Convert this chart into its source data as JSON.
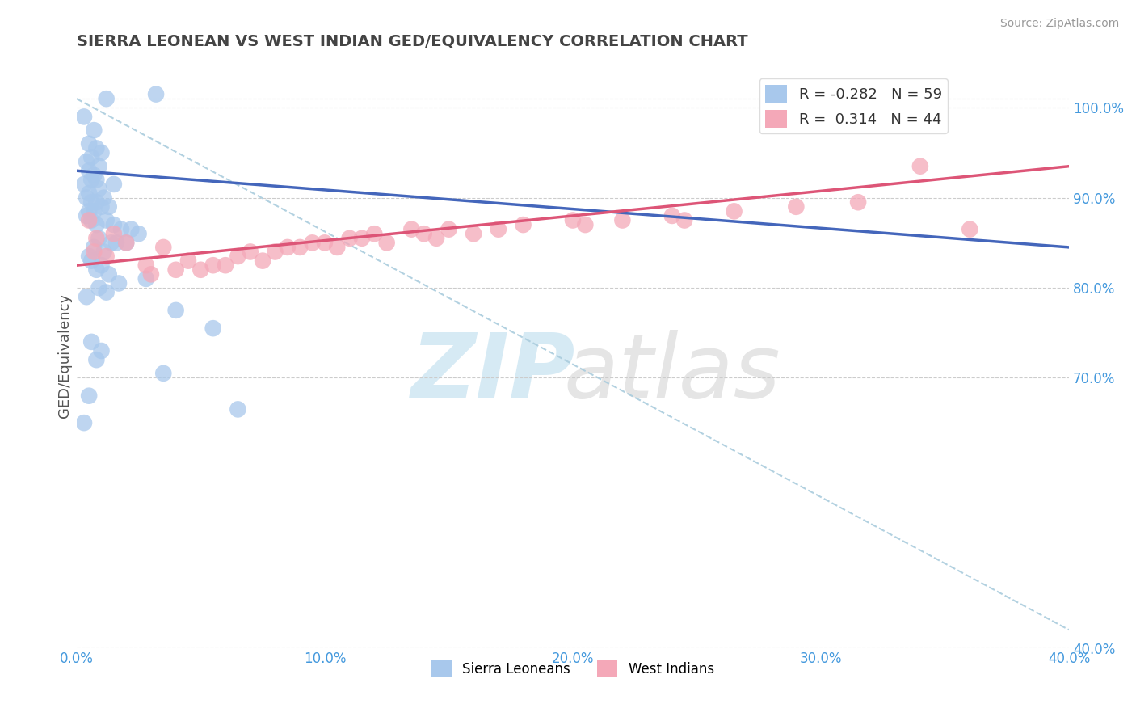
{
  "title": "SIERRA LEONEAN VS WEST INDIAN GED/EQUIVALENCY CORRELATION CHART",
  "source": "Source: ZipAtlas.com",
  "ylabel": "GED/Equivalency",
  "xlim": [
    0.0,
    40.0
  ],
  "ylim": [
    40.0,
    105.0
  ],
  "yticks_right": [
    40.0,
    70.0,
    80.0,
    90.0,
    100.0
  ],
  "xticks": [
    0.0,
    10.0,
    20.0,
    30.0,
    40.0
  ],
  "blue_R": -0.282,
  "blue_N": 59,
  "pink_R": 0.314,
  "pink_N": 44,
  "blue_color": "#A8C8EC",
  "pink_color": "#F4A8B8",
  "blue_line_color": "#4466BB",
  "pink_line_color": "#DD5577",
  "dashed_line_color": "#AACCDD",
  "grid_color": "#CCCCCC",
  "title_color": "#444444",
  "axis_color": "#4499DD",
  "legend_blue_label": "Sierra Leoneans",
  "legend_pink_label": "West Indians",
  "blue_line_x0": 0.0,
  "blue_line_y0": 93.0,
  "blue_line_x1": 40.0,
  "blue_line_y1": 84.5,
  "pink_line_x0": 0.0,
  "pink_line_y0": 82.5,
  "pink_line_x1": 40.0,
  "pink_line_y1": 93.5,
  "dash_line_x0": 0.0,
  "dash_line_y0": 101.0,
  "dash_line_x1": 40.0,
  "dash_line_y1": 42.0,
  "blue_scatter_x": [
    1.2,
    3.2,
    0.3,
    0.7,
    0.5,
    0.8,
    1.0,
    0.6,
    0.4,
    0.9,
    0.5,
    0.7,
    0.8,
    0.6,
    1.5,
    0.3,
    0.9,
    0.5,
    0.4,
    1.1,
    0.6,
    0.8,
    1.3,
    1.0,
    0.7,
    0.5,
    0.4,
    1.2,
    0.6,
    0.8,
    1.5,
    1.8,
    2.2,
    2.5,
    0.9,
    1.4,
    1.6,
    2.0,
    0.7,
    1.1,
    0.5,
    0.6,
    1.0,
    0.8,
    1.3,
    2.8,
    1.7,
    0.9,
    1.2,
    0.4,
    4.0,
    5.5,
    0.6,
    1.0,
    0.8,
    3.5,
    0.5,
    6.5,
    0.3
  ],
  "blue_scatter_y": [
    101.0,
    101.5,
    99.0,
    97.5,
    96.0,
    95.5,
    95.0,
    94.5,
    94.0,
    93.5,
    93.0,
    92.5,
    92.0,
    92.0,
    91.5,
    91.5,
    91.0,
    90.5,
    90.0,
    90.0,
    89.5,
    89.5,
    89.0,
    89.0,
    88.5,
    88.5,
    88.0,
    87.5,
    87.5,
    87.0,
    87.0,
    86.5,
    86.5,
    86.0,
    85.5,
    85.0,
    85.0,
    85.0,
    84.5,
    84.0,
    83.5,
    83.0,
    82.5,
    82.0,
    81.5,
    81.0,
    80.5,
    80.0,
    79.5,
    79.0,
    77.5,
    75.5,
    74.0,
    73.0,
    72.0,
    70.5,
    68.0,
    66.5,
    65.0
  ],
  "pink_scatter_x": [
    0.5,
    1.5,
    0.8,
    2.0,
    3.5,
    0.7,
    1.2,
    4.5,
    2.8,
    5.0,
    3.0,
    6.0,
    4.0,
    7.5,
    5.5,
    8.0,
    6.5,
    9.0,
    7.0,
    10.0,
    8.5,
    11.0,
    9.5,
    12.0,
    10.5,
    13.5,
    11.5,
    14.0,
    12.5,
    15.0,
    14.5,
    16.0,
    17.0,
    18.0,
    20.0,
    22.0,
    24.0,
    26.5,
    29.0,
    31.5,
    20.5,
    34.0,
    24.5,
    36.0
  ],
  "pink_scatter_y": [
    87.5,
    86.0,
    85.5,
    85.0,
    84.5,
    84.0,
    83.5,
    83.0,
    82.5,
    82.0,
    81.5,
    82.5,
    82.0,
    83.0,
    82.5,
    84.0,
    83.5,
    84.5,
    84.0,
    85.0,
    84.5,
    85.5,
    85.0,
    86.0,
    84.5,
    86.5,
    85.5,
    86.0,
    85.0,
    86.5,
    85.5,
    86.0,
    86.5,
    87.0,
    87.5,
    87.5,
    88.0,
    88.5,
    89.0,
    89.5,
    87.0,
    93.5,
    87.5,
    86.5
  ]
}
